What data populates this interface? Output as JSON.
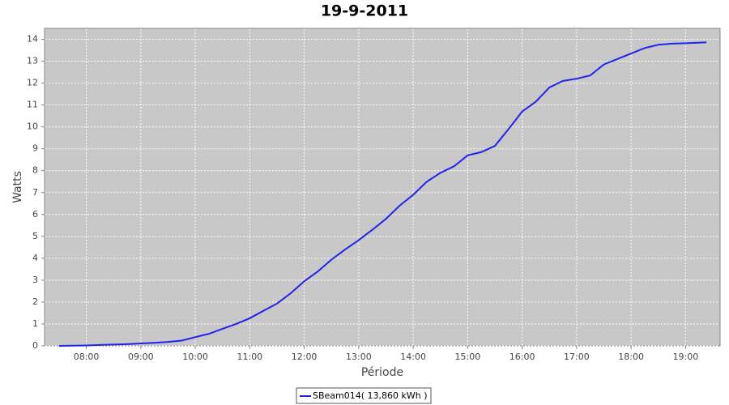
{
  "chart_data": {
    "type": "line",
    "title": "19-9-2011",
    "x_label": "Période",
    "y_label": "Watts",
    "x": [
      "07:30",
      "07:45",
      "08:00",
      "08:15",
      "08:30",
      "08:45",
      "09:00",
      "09:15",
      "09:30",
      "09:45",
      "10:00",
      "10:15",
      "10:30",
      "10:45",
      "11:00",
      "11:15",
      "11:30",
      "11:45",
      "12:00",
      "12:15",
      "12:30",
      "12:45",
      "13:00",
      "13:15",
      "13:30",
      "13:45",
      "14:00",
      "14:15",
      "14:30",
      "14:45",
      "15:00",
      "15:15",
      "15:30",
      "15:45",
      "16:00",
      "16:15",
      "16:30",
      "16:45",
      "17:00",
      "17:15",
      "17:30",
      "17:45",
      "18:00",
      "18:15",
      "18:30",
      "18:45",
      "19:00",
      "19:23"
    ],
    "series": [
      {
        "name": "SBeam014( 13,860 kWh )",
        "color": "#2222ee",
        "values": [
          0,
          0.01,
          0.02,
          0.04,
          0.06,
          0.08,
          0.11,
          0.14,
          0.18,
          0.24,
          0.4,
          0.55,
          0.78,
          1.0,
          1.26,
          1.6,
          1.93,
          2.4,
          2.95,
          3.4,
          3.94,
          4.4,
          4.83,
          5.3,
          5.8,
          6.4,
          6.9,
          7.5,
          7.9,
          8.2,
          8.7,
          8.85,
          9.13,
          9.9,
          10.7,
          11.15,
          11.8,
          12.1,
          12.2,
          12.35,
          12.85,
          13.1,
          13.35,
          13.6,
          13.75,
          13.8,
          13.82,
          13.86
        ]
      }
    ],
    "xlim": [
      "07:14",
      "19:38"
    ],
    "xticks": [
      "08:00",
      "09:00",
      "10:00",
      "11:00",
      "12:00",
      "13:00",
      "14:00",
      "15:00",
      "16:00",
      "17:00",
      "18:00",
      "19:00"
    ],
    "ylim": [
      0,
      14.5
    ],
    "yticks": [
      0,
      1,
      2,
      3,
      4,
      5,
      6,
      7,
      8,
      9,
      10,
      11,
      12,
      13,
      14
    ],
    "grid": true
  }
}
